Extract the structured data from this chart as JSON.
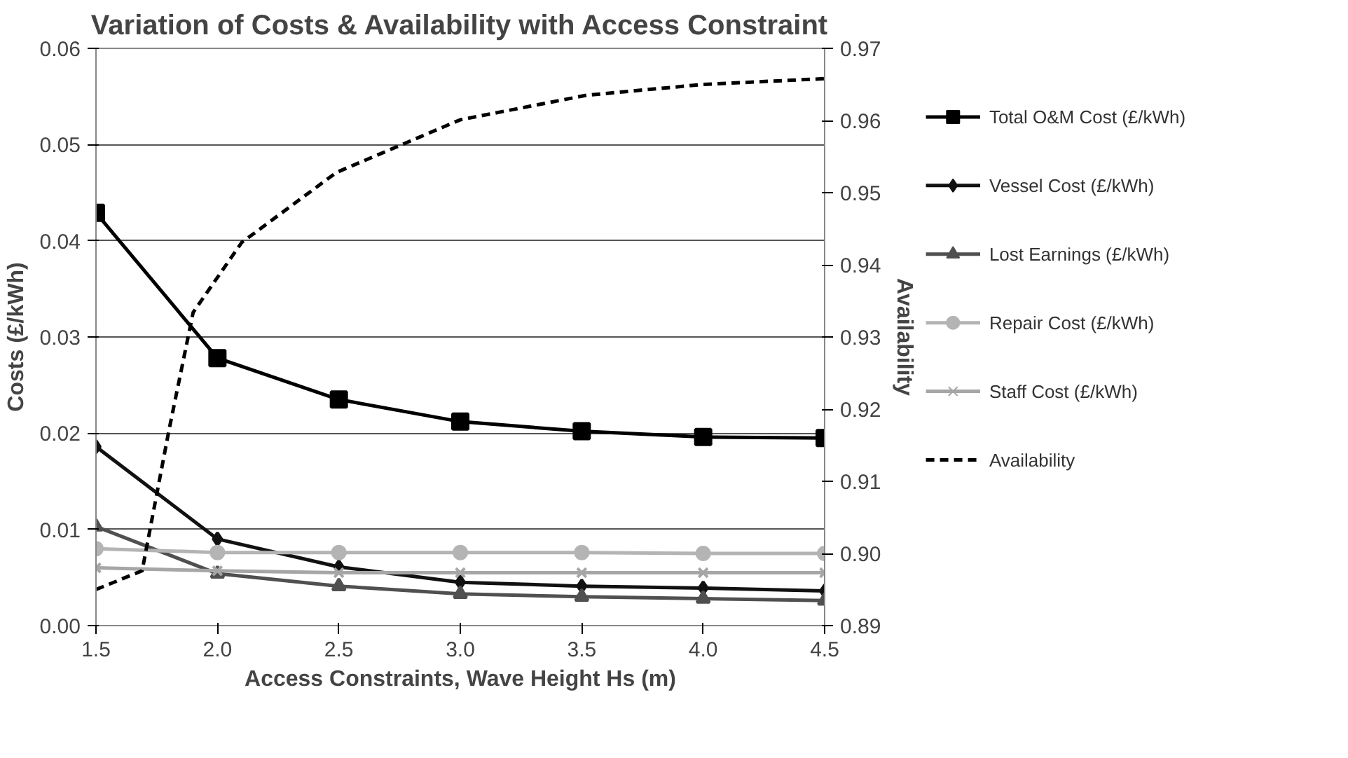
{
  "chart_data": {
    "type": "line",
    "title": "Variation of Costs & Availability with Access Constraint",
    "xlabel": "Access Constraints, Wave Height Hs (m)",
    "ylabel": "Costs (£/kWh)",
    "y2label": "Availability",
    "x": [
      1.5,
      2.0,
      2.5,
      3.0,
      3.5,
      4.0,
      4.5
    ],
    "series": [
      {
        "name": "Total O&M Cost (£/kWh)",
        "color": "#000000",
        "marker": "square",
        "values": [
          0.0429,
          0.0278,
          0.0235,
          0.0212,
          0.0202,
          0.0196,
          0.0195
        ]
      },
      {
        "name": "Vessel Cost (£/kWh)",
        "color": "#111111",
        "marker": "diamond",
        "values": [
          0.0186,
          0.009,
          0.0061,
          0.0045,
          0.0041,
          0.0039,
          0.0036
        ]
      },
      {
        "name": "Lost Earnings (£/kWh)",
        "color": "#505050",
        "marker": "triangle",
        "values": [
          0.0103,
          0.0054,
          0.0041,
          0.0033,
          0.003,
          0.0028,
          0.0026
        ]
      },
      {
        "name": "Repair Cost (£/kWh)",
        "color": "#b4b4b4",
        "marker": "circle",
        "values": [
          0.008,
          0.0076,
          0.0076,
          0.0076,
          0.0076,
          0.0075,
          0.0075
        ]
      },
      {
        "name": "Staff Cost (£/kWh)",
        "color": "#a6a6a6",
        "marker": "cross",
        "values": [
          0.006,
          0.0057,
          0.0055,
          0.0055,
          0.0055,
          0.0055,
          0.0055
        ]
      },
      {
        "name": "Availability",
        "color": "#000000",
        "marker": "none",
        "line_style": "dashed",
        "axis": "y2",
        "x": [
          1.5,
          1.69,
          1.8,
          1.9,
          2.1,
          2.49,
          3.0,
          3.52,
          4.0,
          4.5
        ],
        "values": [
          0.895,
          0.8976,
          0.917,
          0.9334,
          0.9431,
          0.9528,
          0.9601,
          0.9635,
          0.965,
          0.9658
        ]
      }
    ],
    "xlim": [
      1.5,
      4.5
    ],
    "xticks": [
      1.5,
      {
        "value": 2,
        "label": "2.0"
      },
      2.5,
      {
        "value": 3,
        "label": "3.0"
      },
      3.5,
      {
        "value": 4,
        "label": "4.0"
      },
      4.5
    ],
    "ylim": [
      0,
      0.06
    ],
    "yticks": [
      {
        "value": 0,
        "label": "0.00"
      },
      0.01,
      0.02,
      0.03,
      0.04,
      0.05,
      0.06
    ],
    "y2lim": [
      0.89,
      0.97
    ],
    "y2ticks": [
      0.89,
      {
        "value": 0.9,
        "label": "0.90"
      },
      0.91,
      0.92,
      0.93,
      0.94,
      0.95,
      0.96,
      0.97
    ],
    "grid": "y",
    "legend": "right"
  }
}
